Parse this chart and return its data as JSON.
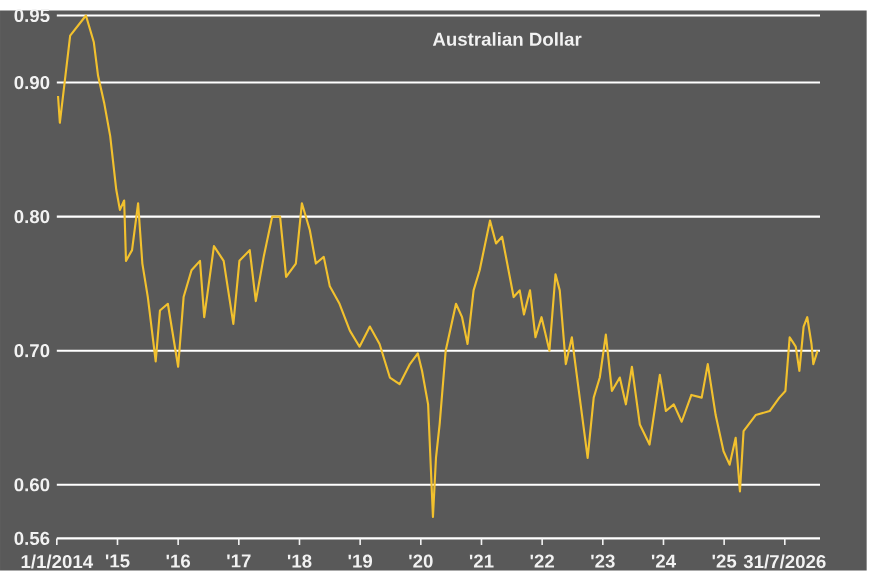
{
  "chart_data": {
    "type": "line",
    "title": "Australian Dollar",
    "color": "#f2c12e",
    "grid": "y",
    "x": [
      2014.02,
      2014.05,
      2014.22,
      2014.48,
      2014.61,
      2014.68,
      2014.78,
      2014.88,
      2014.98,
      2015.04,
      2015.11,
      2015.14,
      2015.24,
      2015.34,
      2015.41,
      2015.5,
      2015.63,
      2015.7,
      2015.83,
      2016.0,
      2016.09,
      2016.22,
      2016.36,
      2016.43,
      2016.59,
      2016.75,
      2016.91,
      2017.01,
      2017.18,
      2017.28,
      2017.41,
      2017.55,
      2017.68,
      2017.78,
      2017.94,
      2018.04,
      2018.17,
      2018.27,
      2018.4,
      2018.5,
      2018.66,
      2018.83,
      2018.99,
      2019.16,
      2019.32,
      2019.49,
      2019.65,
      2019.82,
      2019.95,
      2020.02,
      2020.12,
      2020.2,
      2020.25,
      2020.31,
      2020.41,
      2020.58,
      2020.68,
      2020.77,
      2020.87,
      2020.97,
      2021.14,
      2021.24,
      2021.34,
      2021.53,
      2021.63,
      2021.7,
      2021.8,
      2021.89,
      2021.99,
      2022.12,
      2022.22,
      2022.29,
      2022.39,
      2022.49,
      2022.59,
      2022.75,
      2022.85,
      2022.95,
      2023.05,
      2023.15,
      2023.28,
      2023.38,
      2023.48,
      2023.61,
      2023.77,
      2023.94,
      2024.04,
      2024.17,
      2024.3,
      2024.46,
      2024.63,
      2024.73,
      2024.86,
      2024.99,
      2025.09,
      2025.19,
      2025.26,
      2025.32,
      2025.52,
      2025.75,
      2025.91,
      2026.01,
      2026.08,
      2026.18,
      2026.24,
      2026.31,
      2026.37,
      2026.44,
      2026.47,
      2026.54
    ],
    "values": [
      0.89,
      0.87,
      0.935,
      0.95,
      0.93,
      0.905,
      0.885,
      0.86,
      0.82,
      0.805,
      0.812,
      0.767,
      0.775,
      0.81,
      0.765,
      0.74,
      0.692,
      0.73,
      0.735,
      0.688,
      0.74,
      0.76,
      0.767,
      0.725,
      0.778,
      0.767,
      0.72,
      0.767,
      0.775,
      0.737,
      0.77,
      0.8,
      0.8,
      0.755,
      0.765,
      0.81,
      0.79,
      0.765,
      0.77,
      0.748,
      0.735,
      0.715,
      0.703,
      0.718,
      0.705,
      0.68,
      0.675,
      0.69,
      0.698,
      0.685,
      0.66,
      0.576,
      0.62,
      0.645,
      0.7,
      0.735,
      0.725,
      0.705,
      0.745,
      0.76,
      0.797,
      0.78,
      0.785,
      0.74,
      0.745,
      0.727,
      0.745,
      0.71,
      0.725,
      0.7,
      0.757,
      0.745,
      0.69,
      0.71,
      0.675,
      0.62,
      0.665,
      0.68,
      0.712,
      0.67,
      0.68,
      0.66,
      0.688,
      0.645,
      0.63,
      0.682,
      0.655,
      0.66,
      0.647,
      0.667,
      0.665,
      0.69,
      0.652,
      0.625,
      0.615,
      0.635,
      0.595,
      0.64,
      0.652,
      0.655,
      0.665,
      0.67,
      0.71,
      0.703,
      0.685,
      0.718,
      0.725,
      0.705,
      0.69,
      0.7
    ],
    "xlim": [
      2014,
      2026.58
    ],
    "ylim": [
      0.56,
      0.95
    ],
    "xticks": [
      {
        "value": 2014,
        "label": "1/1/2014"
      },
      {
        "value": 2015,
        "label": "'15"
      },
      {
        "value": 2016,
        "label": "'16"
      },
      {
        "value": 2017,
        "label": "'17"
      },
      {
        "value": 2018,
        "label": "'18"
      },
      {
        "value": 2019,
        "label": "'19"
      },
      {
        "value": 2020,
        "label": "'20"
      },
      {
        "value": 2021,
        "label": "'21"
      },
      {
        "value": 2022,
        "label": "'22"
      },
      {
        "value": 2023,
        "label": "'23"
      },
      {
        "value": 2024,
        "label": "'24"
      },
      {
        "value": 2025,
        "label": "'25"
      },
      {
        "value": 2026,
        "label": "31/7/2026"
      }
    ],
    "yticks": [
      {
        "value": 0.56,
        "label": "0.56"
      },
      {
        "value": 0.6,
        "label": "0.60"
      },
      {
        "value": 0.7,
        "label": "0.70"
      },
      {
        "value": 0.8,
        "label": "0.80"
      },
      {
        "value": 0.9,
        "label": "0.90"
      },
      {
        "value": 0.95,
        "label": "0.95"
      }
    ]
  }
}
